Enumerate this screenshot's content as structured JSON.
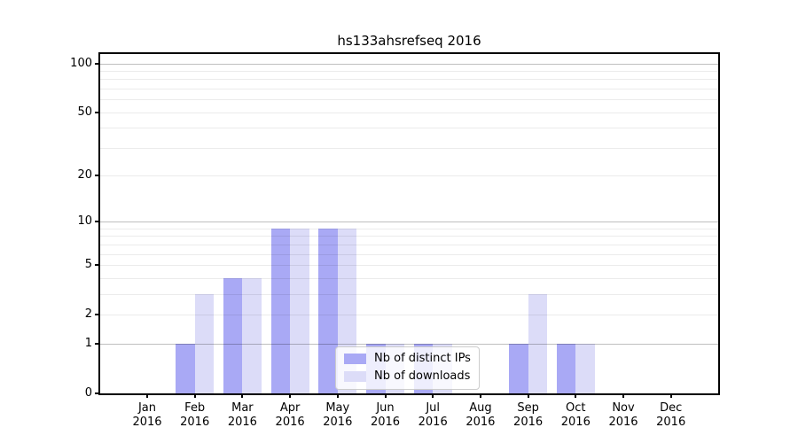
{
  "chart_data": {
    "type": "bar",
    "title": "hs133ahsrefseq 2016",
    "categories": [
      "Jan",
      "Feb",
      "Mar",
      "Apr",
      "May",
      "Jun",
      "Jul",
      "Aug",
      "Sep",
      "Oct",
      "Nov",
      "Dec"
    ],
    "category_year": "2016",
    "series": [
      {
        "name": "Nb of distinct IPs",
        "color": "#a9a9f5",
        "values": [
          0,
          1,
          4,
          9,
          9,
          1,
          1,
          0,
          1,
          1,
          0,
          0
        ]
      },
      {
        "name": "Nb of downloads",
        "color": "#dcdcf8",
        "values": [
          0,
          3,
          4,
          9,
          9,
          1,
          1,
          0,
          3,
          1,
          0,
          0
        ]
      }
    ],
    "yscale": "symlog",
    "ylim": [
      0,
      114
    ],
    "yticks": [
      0,
      1,
      2,
      5,
      10,
      20,
      50,
      100
    ],
    "major_gridlines": [
      1,
      10,
      100
    ],
    "minor_gridlines": [
      2,
      3,
      4,
      5,
      6,
      7,
      8,
      9,
      20,
      30,
      40,
      50,
      60,
      70,
      80,
      90
    ],
    "grid": true,
    "legend_position": "lower-center"
  },
  "colors": {
    "major_grid": "rgba(0,0,0,0.25)",
    "minor_grid": "rgba(0,0,0,0.08)",
    "spine": "#000000",
    "background": "#ffffff",
    "text": "#000000"
  }
}
